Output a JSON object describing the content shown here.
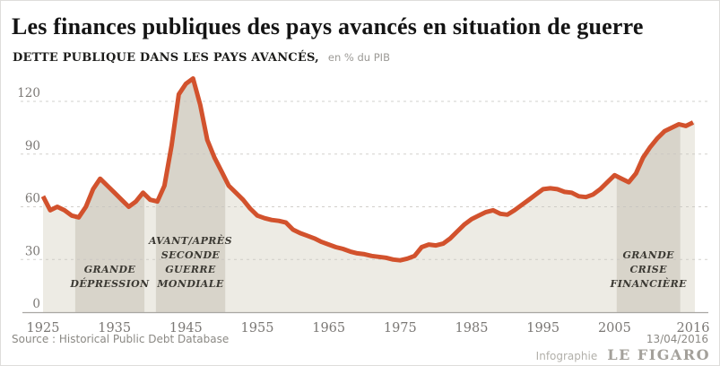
{
  "header": {
    "title": "Les finances publiques des pays avancés en situation de guerre",
    "subtitle": "DETTE PUBLIQUE DANS LES PAYS AVANCÉS,",
    "subtitle_unit": "en % du PIB"
  },
  "footer": {
    "source": "Source : Historical Public Debt Database",
    "date": "13/04/2016",
    "credit_prefix": "Infographie",
    "credit_brand": "LE FIGARO"
  },
  "chart_data": {
    "type": "area",
    "title": "DETTE PUBLIQUE DANS LES PAYS AVANCÉS",
    "unit": "en % du PIB",
    "xlabel": "",
    "ylabel": "% du PIB",
    "ylim": [
      0,
      133
    ],
    "yticks": [
      0,
      30,
      60,
      90,
      120
    ],
    "xticks": [
      1925,
      1935,
      1945,
      1955,
      1965,
      1975,
      1985,
      1995,
      2005,
      2016
    ],
    "grid": "dashed-horizontal",
    "legend": "none",
    "line_color": "#d2522d",
    "fill_color": "#edebe4",
    "band_color": "#d8d4ca",
    "axis_color": "#a8a6a2",
    "grid_color": "#c7c5c0",
    "years": [
      1925,
      1926,
      1927,
      1928,
      1929,
      1930,
      1931,
      1932,
      1933,
      1934,
      1935,
      1936,
      1937,
      1938,
      1939,
      1940,
      1941,
      1942,
      1943,
      1944,
      1945,
      1946,
      1947,
      1948,
      1949,
      1950,
      1951,
      1952,
      1953,
      1954,
      1955,
      1956,
      1957,
      1958,
      1959,
      1960,
      1961,
      1962,
      1963,
      1964,
      1965,
      1966,
      1967,
      1968,
      1969,
      1970,
      1971,
      1972,
      1973,
      1974,
      1975,
      1976,
      1977,
      1978,
      1979,
      1980,
      1981,
      1982,
      1983,
      1984,
      1985,
      1986,
      1987,
      1988,
      1989,
      1990,
      1991,
      1992,
      1993,
      1994,
      1995,
      1996,
      1997,
      1998,
      1999,
      2000,
      2001,
      2002,
      2003,
      2004,
      2005,
      2006,
      2007,
      2008,
      2009,
      2010,
      2011,
      2012,
      2013,
      2014,
      2015,
      2016
    ],
    "values": [
      66,
      58,
      60,
      58,
      55,
      54,
      60,
      70,
      76,
      72,
      68,
      64,
      60,
      63,
      68,
      64,
      63,
      72,
      95,
      124,
      130,
      133,
      118,
      98,
      88,
      80,
      72,
      68,
      64,
      59,
      55,
      53.5,
      52.5,
      52,
      51,
      47,
      45,
      43.5,
      42,
      40,
      38.5,
      37,
      36,
      34.5,
      33.5,
      33,
      32,
      31.5,
      31,
      30,
      29.5,
      30.5,
      32,
      37,
      38.5,
      38,
      39,
      42,
      46,
      50,
      53,
      55,
      57,
      58,
      56,
      55.5,
      58,
      61,
      64,
      67,
      70,
      70.5,
      70,
      68.5,
      68,
      66,
      65.5,
      67,
      70,
      74,
      78,
      76,
      74,
      79,
      88,
      94,
      99,
      103,
      105,
      107,
      106,
      108
    ],
    "annotations": [
      {
        "id": "grande-depression",
        "from": 1929.5,
        "to": 1939.2,
        "label_lines": [
          "GRANDE",
          "DÉPRESSION"
        ]
      },
      {
        "id": "seconde-guerre-mondiale",
        "from": 1940.8,
        "to": 1950.5,
        "label_lines": [
          "AVANT/APRÈS",
          "SECONDE",
          "GUERRE",
          "MONDIALE"
        ]
      },
      {
        "id": "grande-crise-financiere",
        "from": 2005.3,
        "to": 2014.2,
        "label_lines": [
          "GRANDE",
          "CRISE",
          "FINANCIÈRE"
        ]
      }
    ]
  }
}
